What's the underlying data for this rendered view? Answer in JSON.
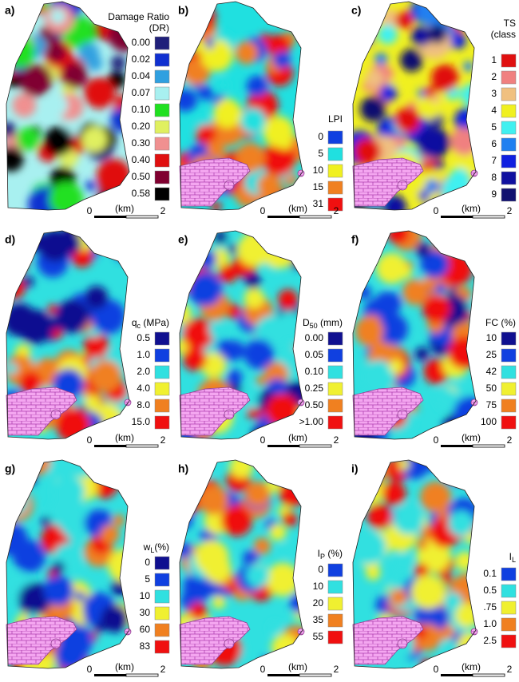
{
  "panels": [
    {
      "label": "a)",
      "title": "Damage Ratio",
      "title2": "(DR)",
      "entries": [
        {
          "text": "0.00",
          "color": "#20207a"
        },
        {
          "text": "0.02",
          "color": "#1030d0"
        },
        {
          "text": "0.04",
          "color": "#30a0e0"
        },
        {
          "text": "0.07",
          "color": "#a8f0f0"
        },
        {
          "text": "0.10",
          "color": "#20e020"
        },
        {
          "text": "0.20",
          "color": "#e0f060"
        },
        {
          "text": "0.30",
          "color": "#f09090"
        },
        {
          "text": "0.40",
          "color": "#e01010"
        },
        {
          "text": "0.50",
          "color": "#800030"
        },
        {
          "text": "0.58",
          "color": "#000000"
        }
      ]
    },
    {
      "label": "b)",
      "title": "LPI",
      "entries": [
        {
          "text": "0",
          "color": "#1040e0"
        },
        {
          "text": "5",
          "color": "#20e0e0"
        },
        {
          "text": "10",
          "color": "#f0f020"
        },
        {
          "text": "15",
          "color": "#f08020"
        },
        {
          "text": "31",
          "color": "#f01010"
        }
      ]
    },
    {
      "label": "c)",
      "title": "TS",
      "title2": "(class",
      "entries": [
        {
          "text": "1",
          "color": "#e01010"
        },
        {
          "text": "2",
          "color": "#f08080"
        },
        {
          "text": "3",
          "color": "#f0c080"
        },
        {
          "text": "4",
          "color": "#f0f020"
        },
        {
          "text": "5",
          "color": "#40f0f0"
        },
        {
          "text": "6",
          "color": "#2080f0"
        },
        {
          "text": "7",
          "color": "#1020e0"
        },
        {
          "text": "8",
          "color": "#1010a0"
        },
        {
          "text": "9",
          "color": "#101070"
        }
      ]
    },
    {
      "label": "d)",
      "title": "q",
      "title_sub": "c",
      "title_rest": " (MPa)",
      "entries": [
        {
          "text": "0.5",
          "color": "#101090"
        },
        {
          "text": "1.0",
          "color": "#1040e0"
        },
        {
          "text": "2.0",
          "color": "#30e0e0"
        },
        {
          "text": "4.0",
          "color": "#f0f030"
        },
        {
          "text": "8.0",
          "color": "#f08020"
        },
        {
          "text": "15.0",
          "color": "#f01010"
        }
      ]
    },
    {
      "label": "e)",
      "title": "D",
      "title_sub": "50",
      "title_rest": " (mm)",
      "entries": [
        {
          "text": "0.00",
          "color": "#101090"
        },
        {
          "text": "0.05",
          "color": "#1040e0"
        },
        {
          "text": "0.10",
          "color": "#30e0e0"
        },
        {
          "text": "0.25",
          "color": "#f0f030"
        },
        {
          "text": "0.50",
          "color": "#f08020"
        },
        {
          "text": ">1.00",
          "color": "#f01010"
        }
      ]
    },
    {
      "label": "f)",
      "title": "FC (%)",
      "entries": [
        {
          "text": "10",
          "color": "#101090"
        },
        {
          "text": "25",
          "color": "#1040e0"
        },
        {
          "text": "42",
          "color": "#30e0e0"
        },
        {
          "text": "50",
          "color": "#f0f030"
        },
        {
          "text": "75",
          "color": "#f08020"
        },
        {
          "text": "100",
          "color": "#f01010"
        }
      ]
    },
    {
      "label": "g)",
      "title": "w",
      "title_sub": "L",
      "title_rest": "(%)",
      "entries": [
        {
          "text": "0",
          "color": "#101090"
        },
        {
          "text": "5",
          "color": "#1040e0"
        },
        {
          "text": "10",
          "color": "#30e0e0"
        },
        {
          "text": "30",
          "color": "#f0f030"
        },
        {
          "text": "60",
          "color": "#f08020"
        },
        {
          "text": "83",
          "color": "#f01010"
        }
      ]
    },
    {
      "label": "h)",
      "title": "I",
      "title_sub": "P",
      "title_rest": " (%)",
      "entries": [
        {
          "text": "0",
          "color": "#1040e0"
        },
        {
          "text": "10",
          "color": "#30e0e0"
        },
        {
          "text": "20",
          "color": "#f0f030"
        },
        {
          "text": "35",
          "color": "#f08020"
        },
        {
          "text": "55",
          "color": "#f01010"
        }
      ]
    },
    {
      "label": "i)",
      "title": "I",
      "title_sub": "L",
      "entries": [
        {
          "text": "0.1",
          "color": "#1040e0"
        },
        {
          "text": "0.5",
          "color": "#30e0e0"
        },
        {
          "text": ".75",
          "color": "#f0f030"
        },
        {
          "text": "1.0",
          "color": "#f08020"
        },
        {
          "text": "2.5",
          "color": "#f01010"
        }
      ]
    }
  ],
  "scale": {
    "start": "0",
    "unit": "(km)",
    "end": "2"
  }
}
